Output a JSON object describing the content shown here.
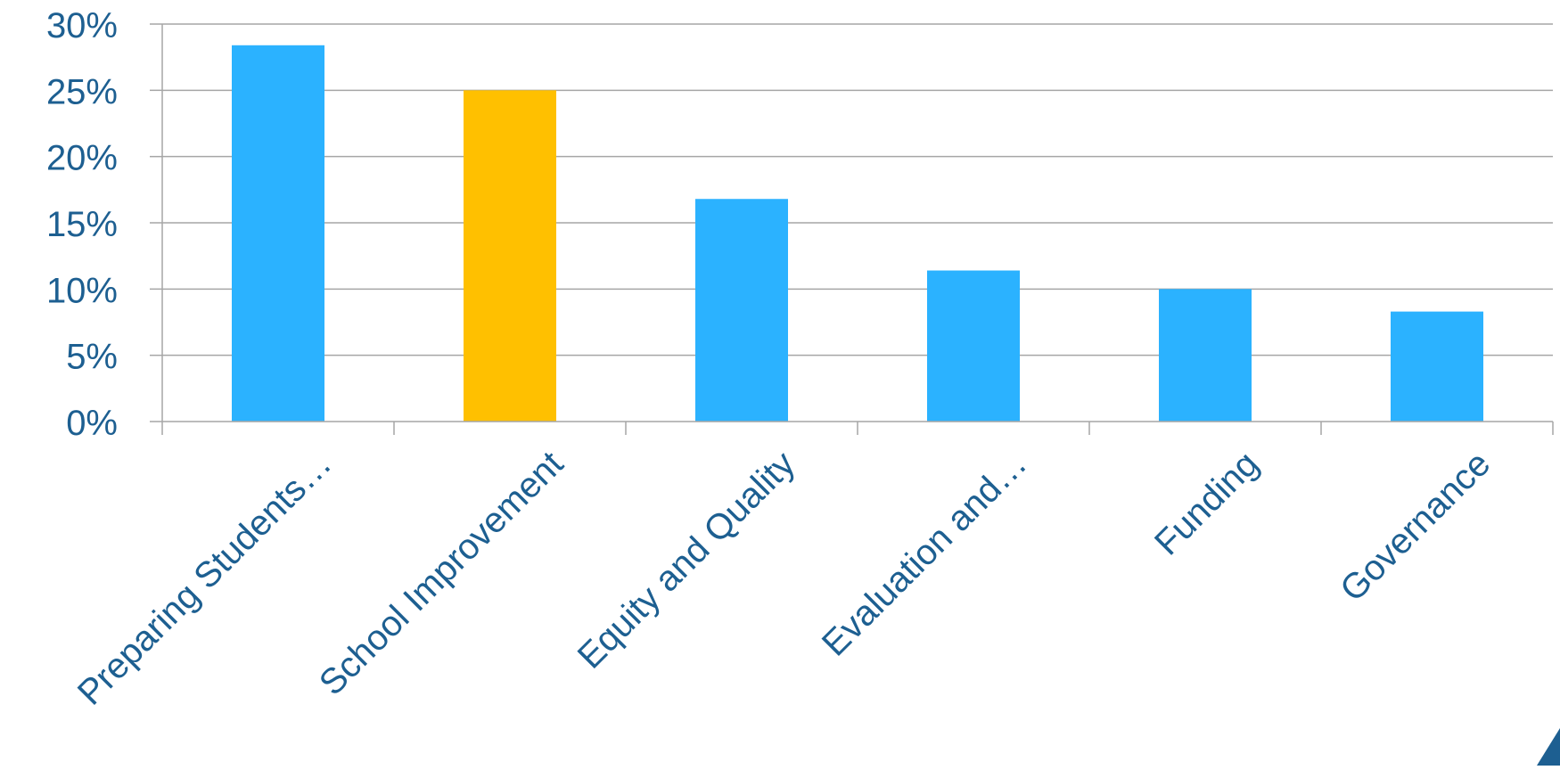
{
  "chart_data": {
    "type": "bar",
    "categories": [
      "Preparing Students…",
      "School Improvement",
      "Equity and Quality",
      "Evaluation and…",
      "Funding",
      "Governance"
    ],
    "values": [
      28.4,
      25.0,
      16.8,
      11.4,
      10.0,
      8.3
    ],
    "value_unit": "%",
    "ylim": [
      0,
      30
    ],
    "yticks": [
      0,
      5,
      10,
      15,
      20,
      25,
      30
    ],
    "ytick_labels": [
      "0%",
      "5%",
      "10%",
      "15%",
      "20%",
      "25%",
      "30%"
    ],
    "grid": true,
    "title": "",
    "xlabel": "",
    "ylabel": "",
    "highlight_index": 1
  },
  "colors": {
    "bar": "#2bb2ff",
    "bar_highlight": "#ffc000",
    "text": "#1d5f91",
    "grid": "#a6a6a6",
    "axis": "#a6a6a6",
    "corner_accent": "#1d5f91"
  },
  "decor": {
    "corner_accent_icon": "triangle-accent"
  }
}
